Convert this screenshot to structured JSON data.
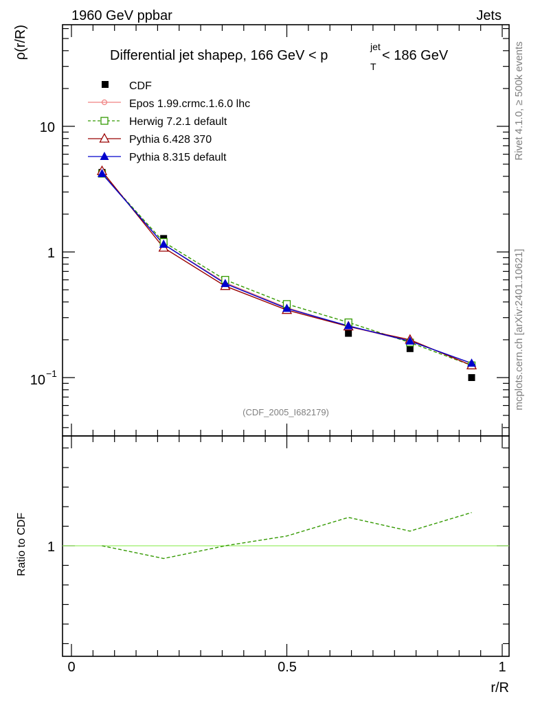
{
  "header": {
    "left": "1960 GeV ppbar",
    "right": "Jets"
  },
  "side_label": "Rivet 4.1.0, ≥ 500k events",
  "side_label2": "mcplots.cern.ch [arXiv:2401.10621]",
  "watermark": "(CDF_2005_I682179)",
  "chart_data": [
    {
      "type": "line",
      "panel": "main",
      "title": "Differential jet shapeρ, 166 GeV < p",
      "title_sup": "jet",
      "title_sub": "T",
      "title_tail": " < 186 GeV",
      "ylabel": "ρ(r/R)",
      "xlabel": "",
      "yscale": "log",
      "ylim": [
        0.04,
        60
      ],
      "xlim": [
        0,
        1
      ],
      "ytick_labels": {
        "major_10": "10",
        "major_1": "1",
        "major_01_base": "10",
        "major_01_exp": "−1"
      },
      "x": [
        0.071,
        0.214,
        0.357,
        0.5,
        0.643,
        0.786,
        0.929
      ],
      "series": [
        {
          "name": "CDF",
          "style": "data",
          "color": "#000000",
          "marker": "square-filled",
          "values": [
            4.3,
            1.28,
            0.595,
            0.36,
            0.225,
            0.17,
            0.1
          ]
        },
        {
          "name": "Epos 1.99.crmc.1.6.0 lhc",
          "style": "solid",
          "color": "#f08080",
          "marker": "cross-circle",
          "values": [
            4.25,
            1.15,
            0.57,
            0.36,
            0.255,
            0.195,
            0.13
          ]
        },
        {
          "name": "Herwig 7.2.1 default",
          "style": "dashed",
          "color": "#339900",
          "marker": "square-open",
          "values": [
            4.2,
            1.2,
            0.6,
            0.385,
            0.275,
            0.19,
            0.125
          ]
        },
        {
          "name": "Pythia 6.428 370",
          "style": "solid",
          "color": "#990000",
          "marker": "triangle-open",
          "values": [
            4.4,
            1.08,
            0.535,
            0.345,
            0.255,
            0.2,
            0.125
          ]
        },
        {
          "name": "Pythia 8.315 default",
          "style": "solid",
          "color": "#0000cc",
          "marker": "triangle-filled",
          "values": [
            4.2,
            1.15,
            0.56,
            0.355,
            0.258,
            0.195,
            0.13
          ]
        }
      ],
      "legend_position": "top-left"
    },
    {
      "type": "line",
      "panel": "ratio",
      "ylabel": "Ratio to CDF",
      "xlabel": "r/R",
      "ylim": [
        0.4,
        1.85
      ],
      "xlim": [
        0,
        1
      ],
      "ytick_label_1": "1",
      "xtick_labels": [
        "0",
        "0.5",
        "1"
      ],
      "xtick_values": [
        0,
        0.5,
        1
      ],
      "reference": {
        "value": 1,
        "color": "#99ee66"
      },
      "x": [
        0.071,
        0.214,
        0.357,
        0.5,
        0.643,
        0.786,
        0.929
      ],
      "series": [
        {
          "name": "Herwig 7.2.1 default",
          "style": "dashed",
          "color": "#339900",
          "values": [
            1.0,
            0.935,
            1.0,
            1.05,
            1.145,
            1.075,
            1.17
          ]
        }
      ]
    }
  ]
}
